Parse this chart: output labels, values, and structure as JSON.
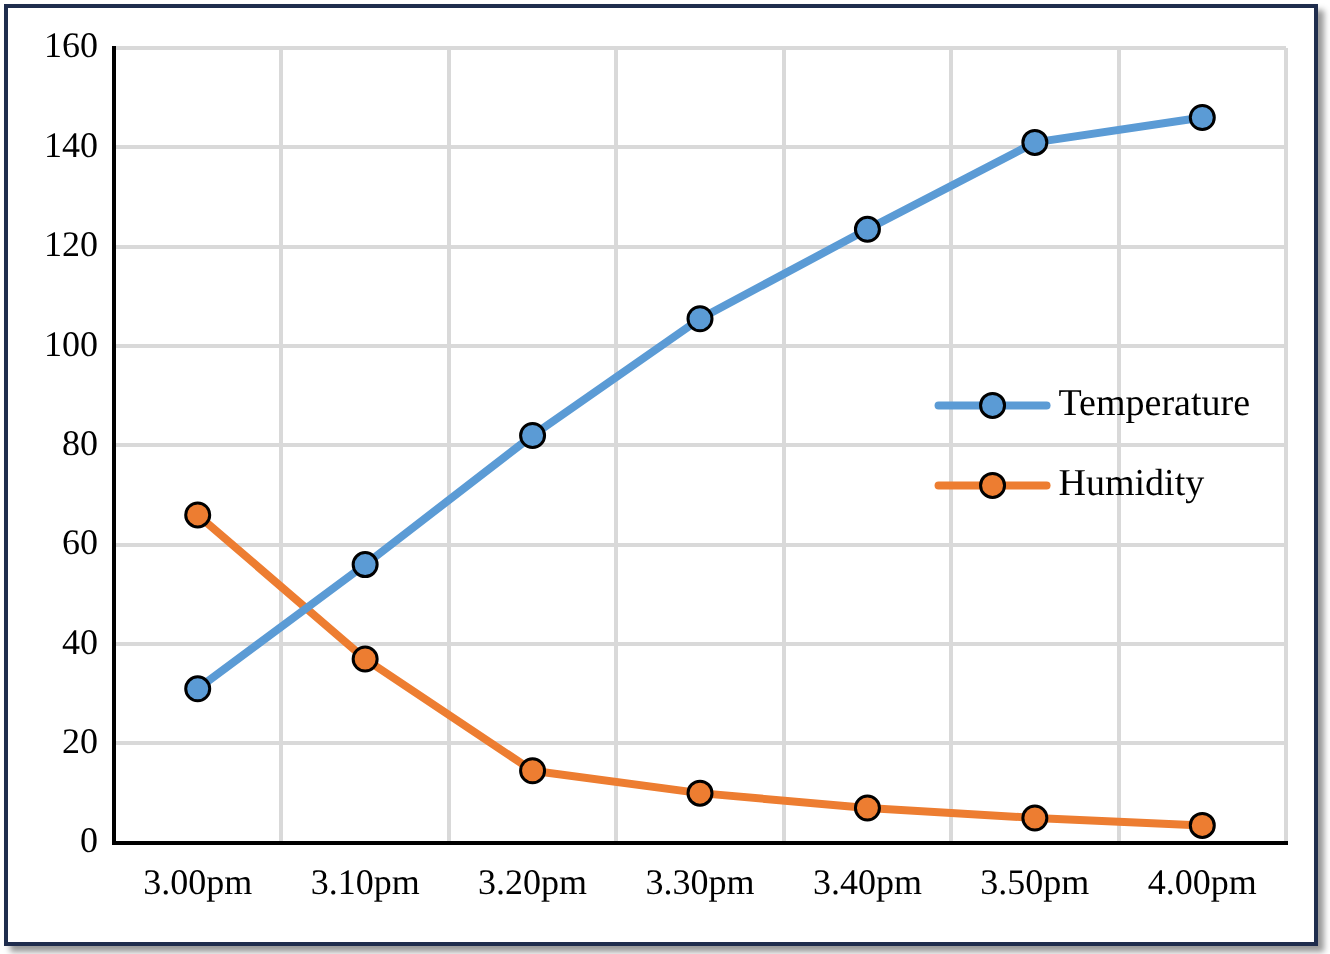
{
  "chart_data": {
    "type": "line",
    "categories": [
      "3.00pm",
      "3.10pm",
      "3.20pm",
      "3.30pm",
      "3.40pm",
      "3.50pm",
      "4.00pm"
    ],
    "series": [
      {
        "name": "Temperature",
        "color": "#5b9bd5",
        "values": [
          31,
          56,
          82,
          105.5,
          123.5,
          141,
          146
        ]
      },
      {
        "name": "Humidity",
        "color": "#ed7d31",
        "values": [
          66,
          37,
          14.5,
          10,
          7,
          5,
          3.5
        ]
      }
    ],
    "ylim": [
      0,
      160
    ],
    "yticks": [
      0,
      20,
      40,
      60,
      80,
      100,
      120,
      140,
      160
    ],
    "grid": true,
    "legend": "right",
    "marker": "circle",
    "line_style": "solid"
  }
}
